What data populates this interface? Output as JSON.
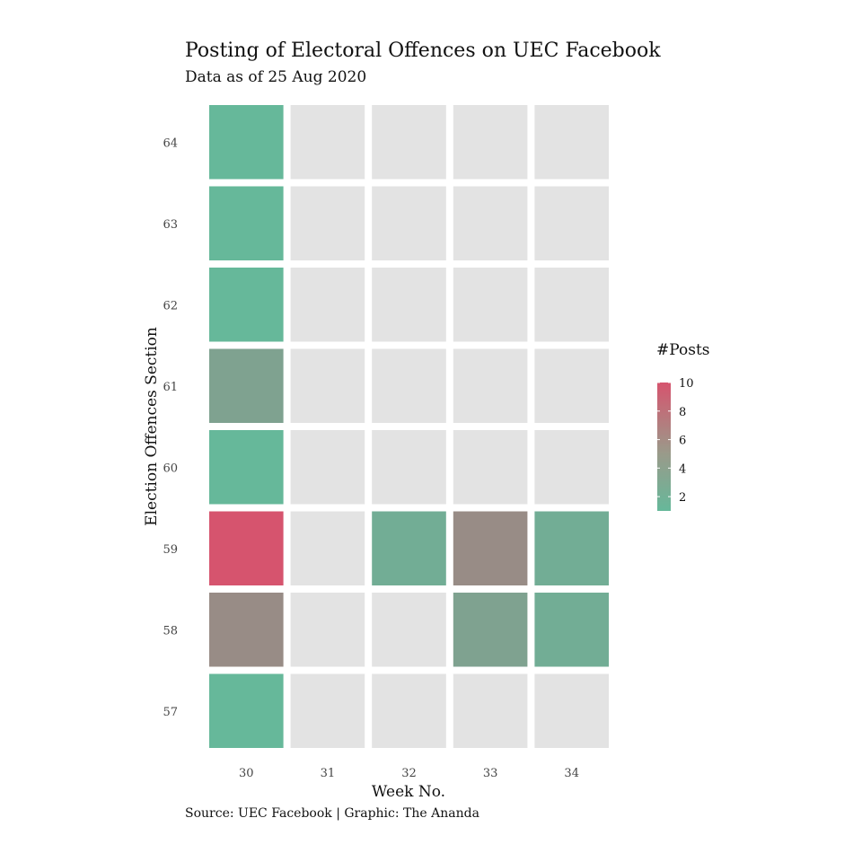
{
  "chart_data": {
    "type": "heatmap",
    "title": "Posting of Electoral Offences on UEC Facebook",
    "subtitle": "Data as of 25 Aug 2020",
    "xlabel": "Week No.",
    "ylabel": "Election Offences Section",
    "caption": "Source: UEC Facebook | Graphic: The Ananda",
    "x_categories": [
      "30",
      "31",
      "32",
      "33",
      "34"
    ],
    "y_categories": [
      "57",
      "58",
      "59",
      "60",
      "61",
      "62",
      "63",
      "64"
    ],
    "values": [
      [
        1,
        null,
        null,
        null,
        null
      ],
      [
        5,
        null,
        null,
        3,
        2
      ],
      [
        10,
        null,
        2,
        5,
        2
      ],
      [
        1,
        null,
        null,
        null,
        null
      ],
      [
        3,
        null,
        null,
        null,
        null
      ],
      [
        1,
        null,
        null,
        null,
        null
      ],
      [
        1,
        null,
        null,
        null,
        null
      ],
      [
        1,
        null,
        null,
        null,
        null
      ]
    ],
    "legend": {
      "title": "#Posts",
      "ticks": [
        2,
        4,
        6,
        8,
        10
      ],
      "range": [
        1,
        10
      ],
      "low_color": "#66b89a",
      "high_color": "#d6546e",
      "position": "right"
    },
    "missing_color": "#e3e3e3",
    "grid": false
  }
}
